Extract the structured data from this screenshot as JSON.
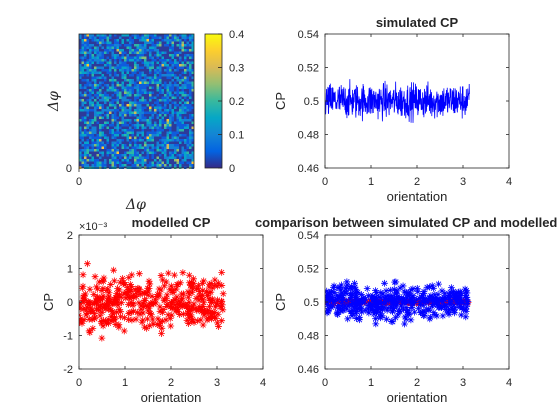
{
  "figure": {
    "background": "#ffffff",
    "axis_color": "#262626"
  },
  "chart_data": [
    {
      "id": "map",
      "type": "heatmap",
      "title": "",
      "xlabel": "Δφ",
      "ylabel": "Δφ",
      "xtick_labels": [
        "0"
      ],
      "ytick_labels": [
        "0"
      ],
      "colormap": "parula",
      "colorbar": {
        "ticks": [
          0,
          0.1,
          0.2,
          0.3,
          0.4
        ],
        "tick_labels": [
          "0",
          "0.1",
          "0.2",
          "0.3",
          "0.4"
        ],
        "clim": [
          0,
          0.4
        ]
      },
      "description_values": "random noise field, values concentrated near 0–0.15"
    },
    {
      "id": "simulated",
      "type": "line",
      "title": "simulated CP",
      "xlabel": "orientation",
      "ylabel": "CP",
      "xlim": [
        0,
        4
      ],
      "ylim": [
        0.46,
        0.54
      ],
      "xticks": [
        0,
        1,
        2,
        3,
        4
      ],
      "yticks": [
        0.46,
        0.48,
        0.5,
        0.52,
        0.54
      ],
      "ytick_labels": [
        "0.46",
        "0.48",
        "0.5",
        "0.52",
        "0.54"
      ],
      "series": [
        {
          "color": "#0000ff",
          "x_range": [
            0,
            3.14
          ],
          "center": 0.5,
          "spread": 0.02
        }
      ]
    },
    {
      "id": "modelled",
      "type": "scatter",
      "title": "modelled CP",
      "exponent_label": "×10⁻³",
      "xlabel": "orientation",
      "ylabel": "CP",
      "xlim": [
        0,
        4
      ],
      "ylim": [
        -2,
        2
      ],
      "xticks": [
        0,
        1,
        2,
        3,
        4
      ],
      "yticks": [
        -2,
        -1,
        0,
        1,
        2
      ],
      "ytick_labels": [
        "-2",
        "-1",
        "0",
        "1",
        "2"
      ],
      "series": [
        {
          "color": "#ff0000",
          "marker": "asterisk",
          "x_range": [
            0,
            3.14
          ],
          "center": 0,
          "spread": 1.5
        }
      ]
    },
    {
      "id": "comparison",
      "type": "scatter",
      "title": "comparison between simulated CP and modelled CP",
      "xlabel": "orientation",
      "ylabel": "CP",
      "xlim": [
        0,
        4
      ],
      "ylim": [
        0.46,
        0.54
      ],
      "xticks": [
        0,
        1,
        2,
        3,
        4
      ],
      "yticks": [
        0.46,
        0.48,
        0.5,
        0.52,
        0.54
      ],
      "ytick_labels": [
        "0.46",
        "0.48",
        "0.5",
        "0.52",
        "0.54"
      ],
      "series": [
        {
          "color": "#ff0000",
          "marker": "asterisk",
          "x_range": [
            0,
            3.14
          ],
          "center": 0.5,
          "spread": 0.0015
        },
        {
          "color": "#0000ff",
          "marker": "asterisk",
          "x_range": [
            0,
            3.14
          ],
          "center": 0.5,
          "spread": 0.02
        }
      ]
    }
  ]
}
